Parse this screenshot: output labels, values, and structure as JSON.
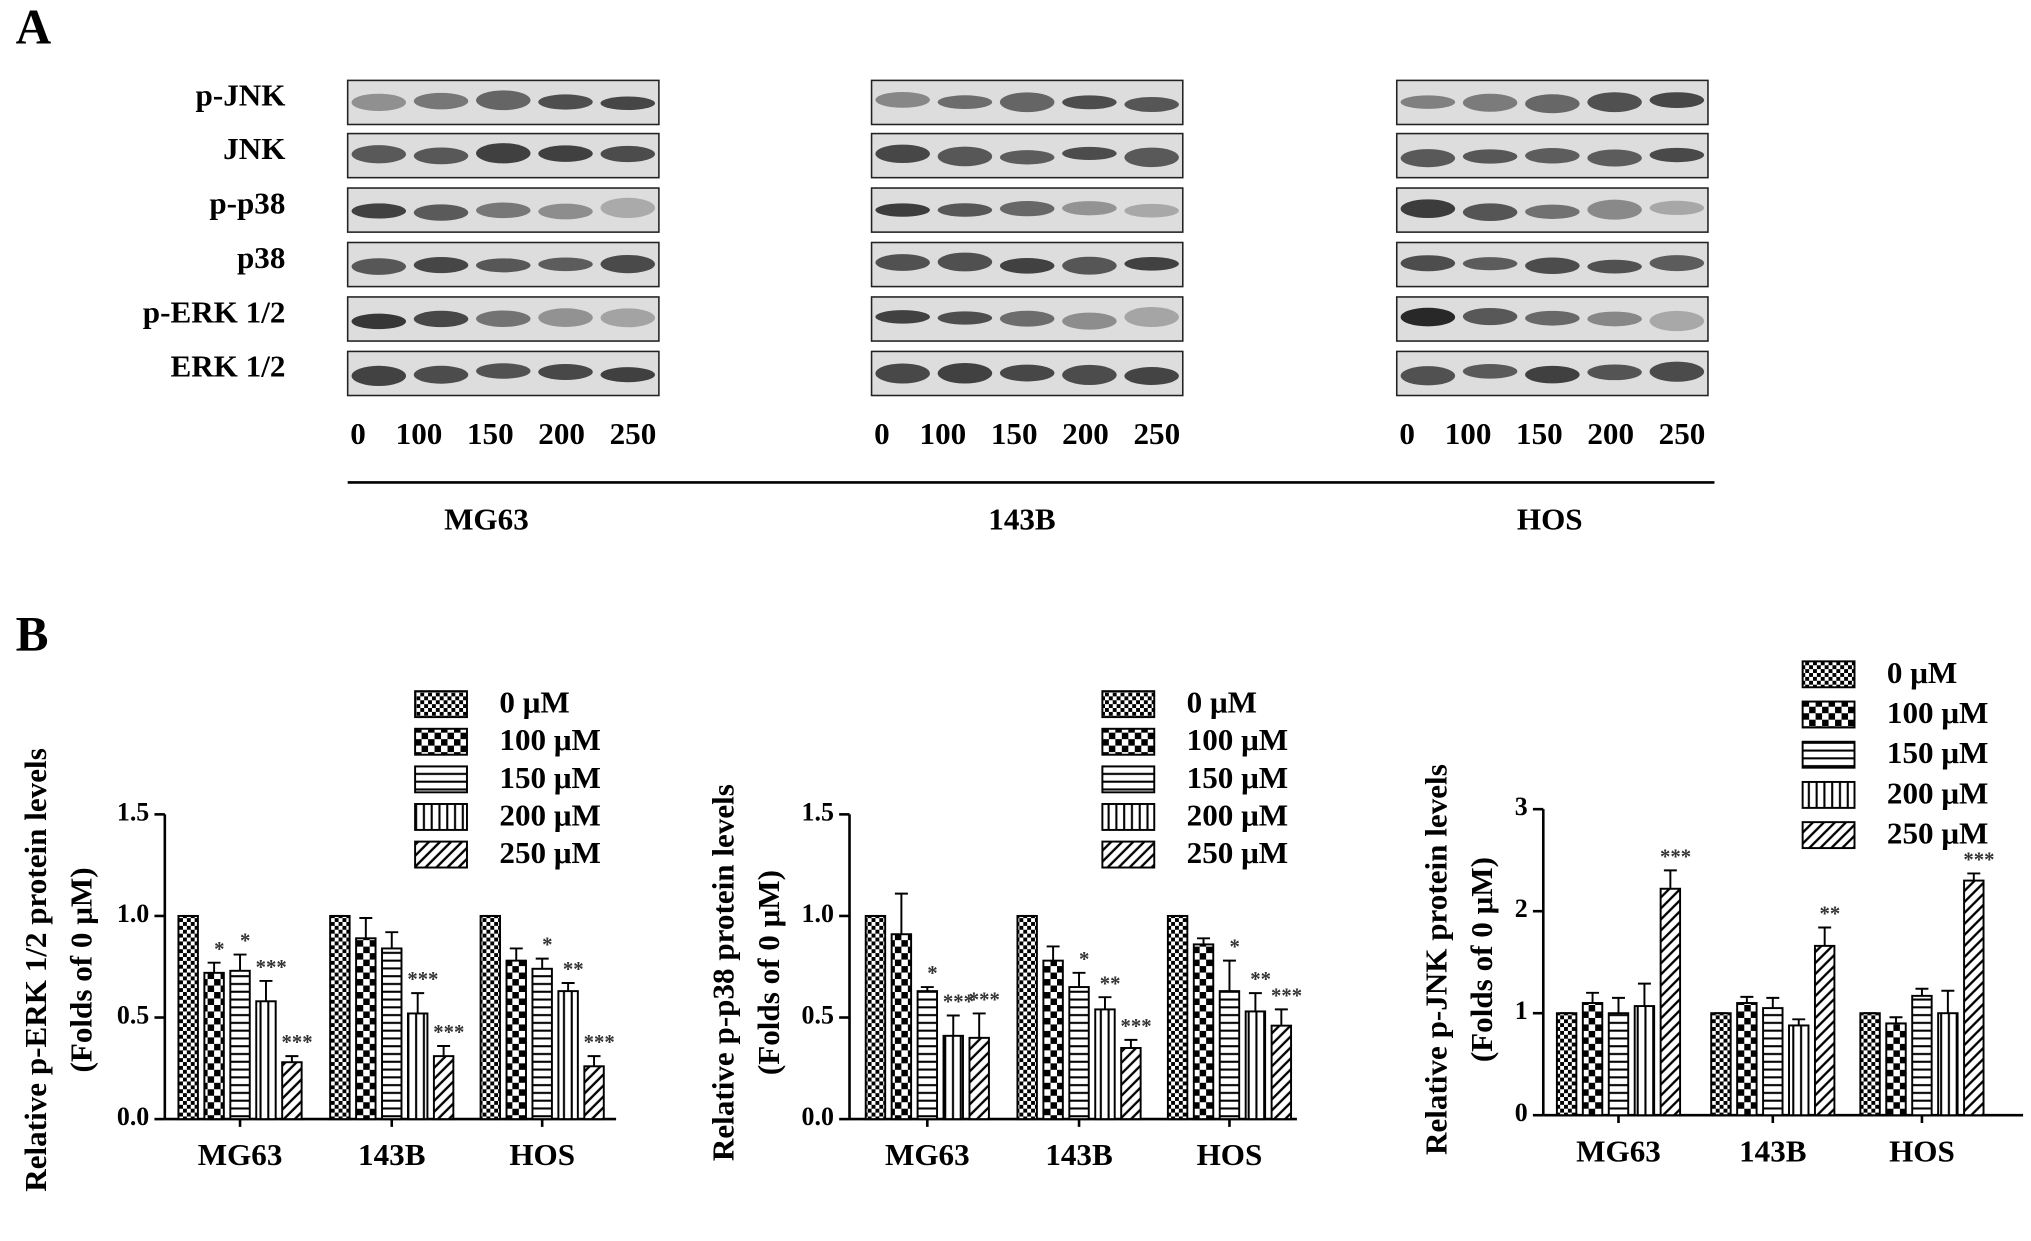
{
  "panel_a": {
    "label": "A",
    "rows": [
      "p-JNK",
      "JNK",
      "p-p38",
      "p38",
      "p-ERK 1/2",
      "ERK 1/2"
    ],
    "lanes": [
      "0",
      "100",
      "150",
      "200",
      "250"
    ],
    "cell_lines": [
      "MG63",
      "143B",
      "HOS"
    ]
  },
  "panel_b": {
    "label": "B"
  },
  "chart_data": [
    {
      "type": "bar",
      "ylabel": [
        "Relative p-ERK 1/2 protein levels",
        "(Folds of 0 μM)"
      ],
      "categories": [
        "MG63",
        "143B",
        "HOS"
      ],
      "ylim": [
        0,
        1.5
      ],
      "yticks": [
        {
          "value": 0,
          "label": "0.0"
        },
        0.5,
        {
          "value": 1,
          "label": "1.0"
        },
        1.5
      ],
      "series": [
        {
          "name": "0 μM",
          "color": "#000",
          "pattern": "checker-fine",
          "values": [
            1,
            1,
            1
          ],
          "errors": [
            0,
            0,
            0
          ],
          "annotations": [
            null,
            null,
            null
          ]
        },
        {
          "name": "100 μM",
          "color": "#000",
          "pattern": "checker",
          "values": [
            0.72,
            0.89,
            0.78
          ],
          "errors": [
            0.05,
            0.1,
            0.06
          ],
          "annotations": [
            "*",
            null,
            null
          ]
        },
        {
          "name": "150 μM",
          "color": "#000",
          "pattern": "horizontal",
          "values": [
            0.73,
            0.84,
            0.74
          ],
          "errors": [
            0.08,
            0.08,
            0.05
          ],
          "annotations": [
            "*",
            null,
            "*"
          ]
        },
        {
          "name": "200 μM",
          "color": "#000",
          "pattern": "vertical",
          "values": [
            0.58,
            0.52,
            0.63
          ],
          "errors": [
            0.1,
            0.1,
            0.04
          ],
          "annotations": [
            "***",
            "***",
            "**"
          ]
        },
        {
          "name": "250 μM",
          "color": "#000",
          "pattern": "diagonal",
          "values": [
            0.28,
            0.31,
            0.26
          ],
          "errors": [
            0.03,
            0.05,
            0.05
          ],
          "annotations": [
            "***",
            "***",
            "***"
          ]
        }
      ]
    },
    {
      "type": "bar",
      "ylabel": [
        "Relative p-p38 protein levels",
        "(Folds of 0 μM)"
      ],
      "categories": [
        "MG63",
        "143B",
        "HOS"
      ],
      "ylim": [
        0,
        1.5
      ],
      "yticks": [
        {
          "value": 0,
          "label": "0.0"
        },
        0.5,
        {
          "value": 1,
          "label": "1.0"
        },
        1.5
      ],
      "series": [
        {
          "name": "0 μM",
          "color": "#000",
          "pattern": "checker-fine",
          "values": [
            1,
            1,
            1
          ],
          "errors": [
            0,
            0,
            0
          ],
          "annotations": [
            null,
            null,
            null
          ]
        },
        {
          "name": "100 μM",
          "color": "#000",
          "pattern": "checker",
          "values": [
            0.91,
            0.78,
            0.86
          ],
          "errors": [
            0.2,
            0.07,
            0.03
          ],
          "annotations": [
            null,
            null,
            null
          ]
        },
        {
          "name": "150 μM",
          "color": "#000",
          "pattern": "horizontal",
          "values": [
            0.63,
            0.65,
            0.63
          ],
          "errors": [
            0.02,
            0.07,
            0.15
          ],
          "annotations": [
            "*",
            "*",
            "*"
          ]
        },
        {
          "name": "200 μM",
          "color": "#000",
          "pattern": "vertical",
          "values": [
            0.41,
            0.54,
            0.53
          ],
          "errors": [
            0.1,
            0.06,
            0.09
          ],
          "annotations": [
            "***",
            "**",
            "**"
          ]
        },
        {
          "name": "250 μM",
          "color": "#000",
          "pattern": "diagonal",
          "values": [
            0.4,
            0.35,
            0.46
          ],
          "errors": [
            0.12,
            0.04,
            0.08
          ],
          "annotations": [
            "***",
            "***",
            "***"
          ]
        }
      ]
    },
    {
      "type": "bar",
      "ylabel": [
        "Relative p-JNK protein levels",
        "(Folds of 0 μM)"
      ],
      "categories": [
        "MG63",
        "143B",
        "HOS"
      ],
      "ylim": [
        0,
        3
      ],
      "yticks": [
        0,
        1,
        2,
        3
      ],
      "series": [
        {
          "name": "0 μM",
          "color": "#000",
          "pattern": "checker-fine",
          "values": [
            1,
            1,
            1
          ],
          "errors": [
            0,
            0,
            0
          ],
          "annotations": [
            null,
            null,
            null
          ]
        },
        {
          "name": "100 μM",
          "color": "#000",
          "pattern": "checker",
          "values": [
            1.1,
            1.1,
            0.9
          ],
          "errors": [
            0.1,
            0.06,
            0.06
          ],
          "annotations": [
            null,
            null,
            null
          ]
        },
        {
          "name": "150 μM",
          "color": "#000",
          "pattern": "horizontal",
          "values": [
            1.0,
            1.05,
            1.17
          ],
          "errors": [
            0.15,
            0.1,
            0.07
          ],
          "annotations": [
            null,
            null,
            null
          ]
        },
        {
          "name": "200 μM",
          "color": "#000",
          "pattern": "vertical",
          "values": [
            1.07,
            0.88,
            1.0
          ],
          "errors": [
            0.22,
            0.06,
            0.22
          ],
          "annotations": [
            null,
            null,
            null
          ]
        },
        {
          "name": "250 μM",
          "color": "#000",
          "pattern": "diagonal",
          "values": [
            2.22,
            1.66,
            2.3
          ],
          "errors": [
            0.18,
            0.18,
            0.07
          ],
          "annotations": [
            "***",
            "**",
            "***"
          ]
        }
      ]
    }
  ]
}
